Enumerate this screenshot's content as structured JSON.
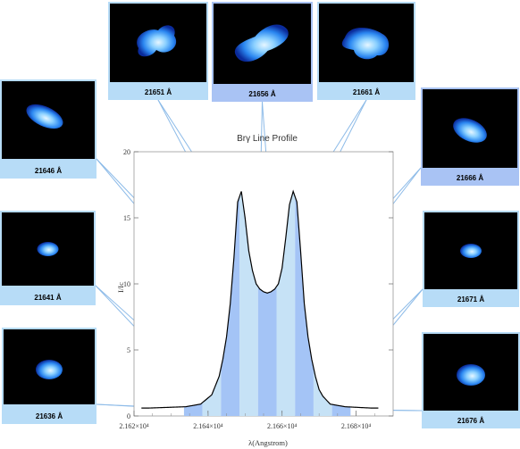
{
  "chart_data": {
    "type": "area",
    "title": "Brγ Line Profile",
    "xlabel": "λ(Angstrom)",
    "ylabel": "I/Ic",
    "xlim": [
      21620,
      21690
    ],
    "ylim": [
      0,
      20
    ],
    "y_ticks": [
      "0",
      "5",
      "10",
      "15",
      "20"
    ],
    "x_ticks": [
      {
        "value": 21620,
        "label": "2.162×10⁴"
      },
      {
        "value": 21640,
        "label": "2.164×10⁴"
      },
      {
        "value": 21660,
        "label": "2.166×10⁴"
      },
      {
        "value": 21680,
        "label": "2.168×10⁴"
      }
    ],
    "profile": {
      "x": [
        21624,
        21634,
        21638,
        21641,
        21643,
        21644,
        21645,
        21646,
        21647,
        21648,
        21649,
        21650,
        21651,
        21652,
        21653,
        21654,
        21655,
        21656,
        21657,
        21658,
        21659,
        21660,
        21661,
        21662,
        21663,
        21664,
        21665,
        21666,
        21667,
        21668,
        21669,
        21670,
        21671,
        21673,
        21677,
        21684
      ],
      "y": [
        0.6,
        0.7,
        0.9,
        1.6,
        3.0,
        4.3,
        6.0,
        8.5,
        12.0,
        16.2,
        17.0,
        15.0,
        12.5,
        11.0,
        10.0,
        9.6,
        9.4,
        9.3,
        9.4,
        9.6,
        10.0,
        11.2,
        13.5,
        16.0,
        17.0,
        16.2,
        12.5,
        8.5,
        6.0,
        4.3,
        3.0,
        2.0,
        1.5,
        0.9,
        0.7,
        0.6
      ]
    },
    "bins": [
      {
        "center": 21636,
        "label": "21636 Å",
        "shade": "mid"
      },
      {
        "center": 21641,
        "label": "21641 Å",
        "shade": "light"
      },
      {
        "center": 21646,
        "label": "21646 Å",
        "shade": "mid"
      },
      {
        "center": 21651,
        "label": "21651 Å",
        "shade": "light"
      },
      {
        "center": 21656,
        "label": "21656 Å",
        "shade": "mid"
      },
      {
        "center": 21661,
        "label": "21661 Å",
        "shade": "light"
      },
      {
        "center": 21666,
        "label": "21666 Å",
        "shade": "mid"
      },
      {
        "center": 21671,
        "label": "21671 Å",
        "shade": "light"
      },
      {
        "center": 21676,
        "label": "21676 Å",
        "shade": "mid"
      }
    ]
  },
  "colors": {
    "bin_mid": "#a4c4f6",
    "bin_light": "#c6e2f6",
    "label_strip": "#b7dcf7",
    "label_strip_alt": "#a9c3f4",
    "panel_bg": "#000000",
    "connector": "#8dbbe8"
  }
}
